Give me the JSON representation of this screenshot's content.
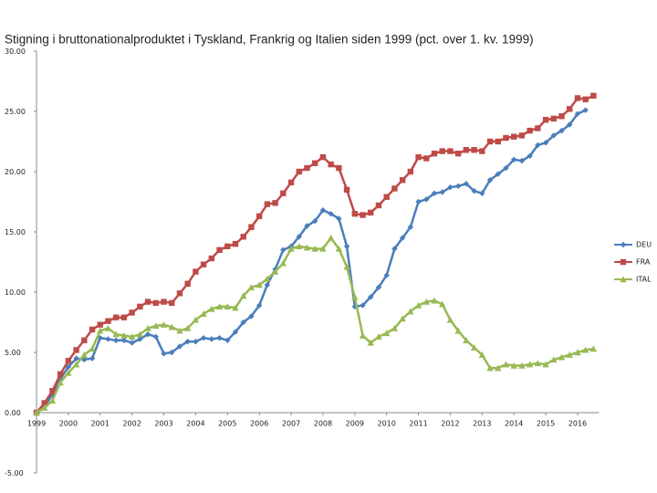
{
  "chart_data": {
    "type": "line",
    "title": "Stigning i bruttonationalproduktet i Tyskland, Frankrig og Italien siden 1999 (pct. over 1. kv. 1999)",
    "categories": [
      "1999",
      null,
      null,
      null,
      "2000",
      null,
      null,
      null,
      "2001",
      null,
      null,
      null,
      "2002",
      null,
      null,
      null,
      "2003",
      null,
      null,
      null,
      "2004",
      null,
      null,
      null,
      "2005",
      null,
      null,
      null,
      "2006",
      null,
      null,
      null,
      "2007",
      null,
      null,
      null,
      "2008",
      null,
      null,
      null,
      "2009",
      null,
      null,
      null,
      "2010",
      null,
      null,
      null,
      "2011",
      null,
      null,
      null,
      "2012",
      null,
      null,
      null,
      "2013",
      null,
      null,
      null,
      "2014",
      null,
      null,
      null,
      "2015",
      null,
      null,
      null,
      "2016",
      null,
      null
    ],
    "series": [
      {
        "name": "DEU",
        "color": "#4a7ebb",
        "marker": "diamond",
        "values": [
          0,
          0.5,
          1.5,
          2.8,
          3.8,
          4.5,
          4.4,
          4.5,
          6.2,
          6.1,
          6.0,
          6.0,
          5.8,
          6.1,
          6.5,
          6.3,
          4.9,
          5.0,
          5.5,
          5.9,
          5.9,
          6.2,
          6.1,
          6.2,
          6.0,
          6.7,
          7.5,
          8.0,
          8.9,
          10.6,
          11.9,
          13.5,
          13.8,
          14.6,
          15.5,
          15.9,
          16.8,
          16.5,
          16.1,
          13.8,
          8.8,
          8.9,
          9.6,
          10.4,
          11.4,
          13.6,
          14.5,
          15.4,
          17.5,
          17.7,
          18.2,
          18.3,
          18.7,
          18.8,
          19.0,
          18.4,
          18.2,
          19.3,
          19.8,
          20.3,
          21.0,
          20.9,
          21.3,
          22.2,
          22.4,
          23.0,
          23.4,
          23.9,
          24.8,
          25.1,
          null
        ]
      },
      {
        "name": "FRA",
        "color": "#be4b48",
        "marker": "square",
        "values": [
          0,
          0.8,
          1.8,
          3.2,
          4.3,
          5.2,
          6.0,
          6.9,
          7.3,
          7.6,
          7.9,
          7.9,
          8.3,
          8.8,
          9.2,
          9.1,
          9.2,
          9.1,
          9.9,
          10.7,
          11.7,
          12.3,
          12.8,
          13.5,
          13.8,
          14.0,
          14.6,
          15.4,
          16.3,
          17.3,
          17.4,
          18.2,
          19.1,
          20.0,
          20.3,
          20.7,
          21.2,
          20.6,
          20.3,
          18.5,
          16.5,
          16.4,
          16.6,
          17.2,
          17.9,
          18.6,
          19.3,
          20.0,
          21.2,
          21.1,
          21.5,
          21.7,
          21.7,
          21.5,
          21.8,
          21.8,
          21.7,
          22.5,
          22.5,
          22.8,
          22.9,
          23.0,
          23.4,
          23.6,
          24.3,
          24.4,
          24.6,
          25.2,
          26.1,
          26.0,
          26.3
        ]
      },
      {
        "name": "ITAL",
        "color": "#98b954",
        "marker": "triangle",
        "values": [
          0,
          0.4,
          1.0,
          2.5,
          3.3,
          4.0,
          4.8,
          5.3,
          6.8,
          7.0,
          6.5,
          6.4,
          6.3,
          6.5,
          7.0,
          7.2,
          7.3,
          7.1,
          6.8,
          7.0,
          7.7,
          8.2,
          8.6,
          8.8,
          8.8,
          8.7,
          9.7,
          10.4,
          10.6,
          11.1,
          11.7,
          12.4,
          13.6,
          13.8,
          13.7,
          13.6,
          13.6,
          14.5,
          13.6,
          12.1,
          9.6,
          6.4,
          5.8,
          6.3,
          6.6,
          7.0,
          7.8,
          8.4,
          8.9,
          9.2,
          9.3,
          9.0,
          7.7,
          6.8,
          6.0,
          5.4,
          4.8,
          3.7,
          3.7,
          4.0,
          3.9,
          3.9,
          4.0,
          4.1,
          4.0,
          4.4,
          4.6,
          4.8,
          5.0,
          5.2,
          5.3
        ]
      }
    ],
    "ylim": [
      -5,
      30
    ],
    "yticks": [
      {
        "value": -5,
        "label": "-5.00"
      },
      {
        "value": 0,
        "label": "0.00"
      },
      {
        "value": 5,
        "label": "5.00"
      },
      {
        "value": 10,
        "label": "10.00"
      },
      {
        "value": 15,
        "label": "15.00"
      },
      {
        "value": 20,
        "label": "20.00"
      },
      {
        "value": 25,
        "label": "25.00"
      },
      {
        "value": 30,
        "label": "30.00"
      }
    ],
    "legend": "right"
  }
}
